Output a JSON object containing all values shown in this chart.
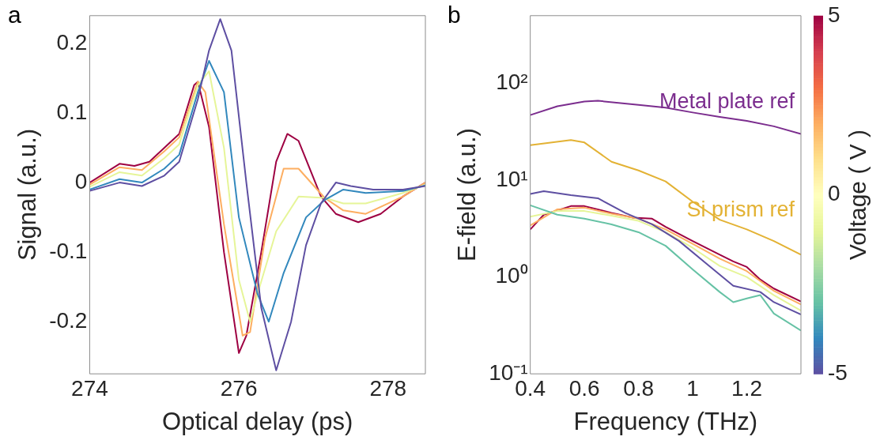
{
  "chart_data": [
    {
      "type": "line",
      "title": "a",
      "xlabel": "Optical delay (ps)",
      "ylabel": "Signal (a.u.)",
      "xlim": [
        274,
        278.5
      ],
      "xticks": [
        274,
        276,
        278
      ],
      "ylim": [
        -0.275,
        0.24
      ],
      "yticks": [
        -0.2,
        -0.1,
        0,
        0.1,
        0.2
      ],
      "marker": "none",
      "series": [
        {
          "color": "#5e4fa2",
          "x": [
            274,
            274.4,
            274.7,
            275.0,
            275.2,
            275.45,
            275.6,
            275.75,
            275.9,
            276.1,
            276.3,
            276.5,
            276.7,
            276.9,
            277.1,
            277.3,
            277.5,
            277.8,
            278.2,
            278.5
          ],
          "values": [
            -0.012,
            0.0,
            -0.005,
            0.01,
            0.03,
            0.12,
            0.19,
            0.235,
            0.19,
            0.0,
            -0.18,
            -0.27,
            -0.2,
            -0.09,
            -0.03,
            0.0,
            -0.005,
            -0.01,
            -0.01,
            -0.005
          ]
        },
        {
          "color": "#3288bd",
          "x": [
            274,
            274.4,
            274.7,
            275.0,
            275.2,
            275.45,
            275.6,
            275.8,
            276.0,
            276.25,
            276.4,
            276.6,
            276.9,
            277.15,
            277.4,
            277.7,
            278.2,
            278.5
          ],
          "values": [
            -0.01,
            0.005,
            0.0,
            0.02,
            0.04,
            0.13,
            0.175,
            0.13,
            -0.05,
            -0.16,
            -0.2,
            -0.13,
            -0.05,
            -0.025,
            -0.01,
            -0.015,
            -0.012,
            -0.004
          ]
        },
        {
          "color": "#e6f598",
          "x": [
            274,
            274.4,
            274.7,
            275.0,
            275.2,
            275.45,
            275.6,
            275.8,
            276.0,
            276.15,
            276.25,
            276.5,
            276.8,
            277.15,
            277.4,
            277.7,
            278.2,
            278.5
          ],
          "values": [
            -0.006,
            0.015,
            0.01,
            0.035,
            0.055,
            0.14,
            0.16,
            0.05,
            -0.14,
            -0.2,
            -0.16,
            -0.07,
            -0.02,
            -0.022,
            -0.03,
            -0.03,
            -0.015,
            -0.003
          ]
        },
        {
          "color": "#fdae61",
          "x": [
            274,
            274.4,
            274.7,
            275.0,
            275.2,
            275.45,
            275.55,
            275.8,
            276.05,
            276.15,
            276.35,
            276.6,
            276.8,
            277.15,
            277.4,
            277.7,
            278.2,
            278.5
          ],
          "values": [
            -0.003,
            0.022,
            0.018,
            0.045,
            0.065,
            0.145,
            0.13,
            -0.06,
            -0.22,
            -0.215,
            -0.08,
            0.02,
            0.02,
            -0.022,
            -0.04,
            -0.045,
            -0.02,
            0.0
          ]
        },
        {
          "color": "#9e0142",
          "x": [
            274,
            274.4,
            274.6,
            274.8,
            275.2,
            275.4,
            275.45,
            275.6,
            275.8,
            276.0,
            276.1,
            276.3,
            276.5,
            276.65,
            276.8,
            277.1,
            277.3,
            277.6,
            277.9,
            278.2,
            278.5
          ],
          "values": [
            0.0,
            0.027,
            0.024,
            0.03,
            0.07,
            0.14,
            0.145,
            0.08,
            -0.1,
            -0.245,
            -0.22,
            -0.1,
            0.03,
            0.07,
            0.06,
            -0.02,
            -0.045,
            -0.057,
            -0.045,
            -0.02,
            0.0
          ]
        }
      ]
    },
    {
      "type": "line",
      "title": "b",
      "xlabel": "Frequency (THz)",
      "ylabel": "E-field (a.u.)",
      "clabel": "Voltage ( V )",
      "clim": [
        -5,
        5
      ],
      "cticks": [
        -5,
        0,
        5
      ],
      "log": "y",
      "xlim": [
        0.4,
        1.4
      ],
      "xticks": [
        0.4,
        0.6,
        0.8,
        1,
        1.2
      ],
      "ylim": [
        0.1,
        500
      ],
      "yticks": [
        {
          "value": 0.1,
          "label": "10⁻¹"
        },
        {
          "value": 1,
          "label": "10⁰"
        },
        {
          "value": 10,
          "label": "10¹"
        },
        {
          "value": 100,
          "label": "10²"
        }
      ],
      "marker": "none",
      "series": [
        {
          "name": "Metal plate ref",
          "color": "#7b2d8e",
          "x": [
            0.4,
            0.5,
            0.6,
            0.65,
            0.8,
            0.9,
            1.0,
            1.1,
            1.2,
            1.3,
            1.4
          ],
          "values": [
            47,
            58,
            65,
            66,
            60,
            56,
            50,
            45,
            41,
            36,
            30
          ]
        },
        {
          "name": "Si prism ref",
          "color": "#e3b234",
          "x": [
            0.4,
            0.55,
            0.6,
            0.7,
            0.8,
            0.9,
            1.0,
            1.1,
            1.2,
            1.3,
            1.4
          ],
          "values": [
            23,
            26,
            24.5,
            15.5,
            12.6,
            9.7,
            6.0,
            3.9,
            3.1,
            2.35,
            1.7
          ]
        },
        {
          "color": "#5e4fa2",
          "x": [
            0.4,
            0.45,
            0.55,
            0.65,
            0.75,
            0.85,
            0.95,
            1.05,
            1.15,
            1.25,
            1.3,
            1.4
          ],
          "values": [
            7.2,
            7.7,
            7.0,
            6.5,
            4.6,
            3.5,
            2.35,
            1.38,
            0.81,
            0.7,
            0.55,
            0.41
          ]
        },
        {
          "color": "#66c2a5",
          "x": [
            0.4,
            0.5,
            0.6,
            0.7,
            0.8,
            0.9,
            1.0,
            1.1,
            1.15,
            1.2,
            1.25,
            1.3,
            1.4
          ],
          "values": [
            5.5,
            4.4,
            4.0,
            3.5,
            2.9,
            2.1,
            1.2,
            0.7,
            0.55,
            0.6,
            0.65,
            0.42,
            0.28
          ]
        },
        {
          "color": "#e6f598",
          "x": [
            0.4,
            0.5,
            0.6,
            0.7,
            0.8,
            0.9,
            1.0,
            1.1,
            1.2,
            1.3,
            1.4
          ],
          "values": [
            4.2,
            4.8,
            4.8,
            4.3,
            3.8,
            2.9,
            2.0,
            1.3,
            1.0,
            0.65,
            0.45
          ]
        },
        {
          "color": "#fdae61",
          "x": [
            0.4,
            0.5,
            0.6,
            0.7,
            0.8,
            0.9,
            1.0,
            1.1,
            1.2,
            1.3,
            1.4
          ],
          "values": [
            3.4,
            5.0,
            5.2,
            4.5,
            4.0,
            3.1,
            2.2,
            1.55,
            1.15,
            0.72,
            0.52
          ]
        },
        {
          "color": "#9e0142",
          "x": [
            0.4,
            0.45,
            0.55,
            0.6,
            0.7,
            0.78,
            0.85,
            0.9,
            1.0,
            1.1,
            1.15,
            1.2,
            1.25,
            1.3,
            1.4
          ],
          "values": [
            3.1,
            4.4,
            5.4,
            5.4,
            4.6,
            4.1,
            4.0,
            3.3,
            2.35,
            1.7,
            1.45,
            1.27,
            0.94,
            0.76,
            0.56
          ]
        }
      ]
    }
  ]
}
